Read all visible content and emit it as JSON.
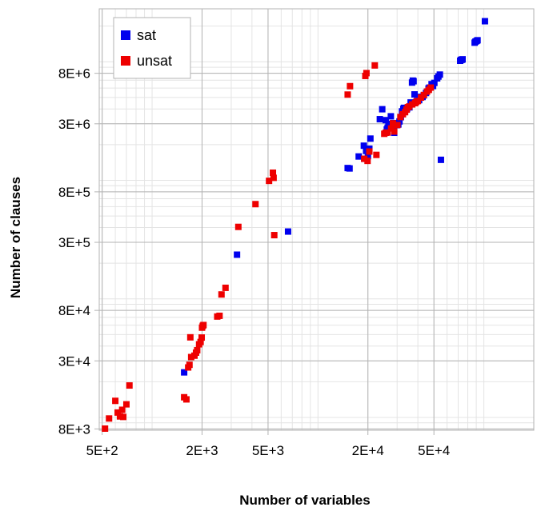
{
  "chart_data": {
    "type": "scatter",
    "xlabel": "Number of variables",
    "ylabel": "Number of clauses",
    "x_scale": "log",
    "y_scale": "log",
    "xlim": [
      480,
      200000
    ],
    "ylim": [
      7800,
      28000000
    ],
    "x_ticks": [
      {
        "value": 500,
        "label": "5E+2"
      },
      {
        "value": 2000,
        "label": "2E+3"
      },
      {
        "value": 5000,
        "label": "5E+3"
      },
      {
        "value": 20000,
        "label": "2E+4"
      },
      {
        "value": 50000,
        "label": "5E+4"
      }
    ],
    "y_ticks": [
      {
        "value": 8000,
        "label": "8E+3"
      },
      {
        "value": 30000,
        "label": "3E+4"
      },
      {
        "value": 80000,
        "label": "8E+4"
      },
      {
        "value": 300000,
        "label": "3E+5"
      },
      {
        "value": 800000,
        "label": "8E+5"
      },
      {
        "value": 3000000,
        "label": "3E+6"
      },
      {
        "value": 8000000,
        "label": "8E+6"
      }
    ],
    "grid": true,
    "legend_position": "top-left",
    "series": [
      {
        "name": "sat",
        "color": "#0000ee",
        "points": [
          [
            1560,
            24000
          ],
          [
            3250,
            236000
          ],
          [
            6600,
            370000
          ],
          [
            15100,
            1270000
          ],
          [
            15500,
            1260000
          ],
          [
            17600,
            1590000
          ],
          [
            18900,
            1960000
          ],
          [
            19000,
            1520000
          ],
          [
            19500,
            1770000
          ],
          [
            19800,
            1820000
          ],
          [
            20000,
            1600000
          ],
          [
            20400,
            1850000
          ],
          [
            20700,
            2250000
          ],
          [
            23600,
            3280000
          ],
          [
            24400,
            3980000
          ],
          [
            25600,
            3220000
          ],
          [
            26000,
            2690000
          ],
          [
            26300,
            2780000
          ],
          [
            26600,
            3000000
          ],
          [
            27500,
            3470000
          ],
          [
            28400,
            2920000
          ],
          [
            28500,
            3040000
          ],
          [
            28800,
            2520000
          ],
          [
            29800,
            2920000
          ],
          [
            30500,
            2960000
          ],
          [
            31000,
            3140000
          ],
          [
            31600,
            3410000
          ],
          [
            32100,
            3820000
          ],
          [
            32700,
            4010000
          ],
          [
            33000,
            4090000
          ],
          [
            34400,
            3990000
          ],
          [
            35600,
            4130000
          ],
          [
            36200,
            4540000
          ],
          [
            36900,
            6680000
          ],
          [
            37300,
            6940000
          ],
          [
            37700,
            6860000
          ],
          [
            38200,
            5310000
          ],
          [
            39600,
            4680000
          ],
          [
            40700,
            4750000
          ],
          [
            41100,
            4990000
          ],
          [
            41700,
            5060000
          ],
          [
            42700,
            5050000
          ],
          [
            43400,
            5200000
          ],
          [
            44800,
            5460000
          ],
          [
            46400,
            5960000
          ],
          [
            47000,
            6060000
          ],
          [
            48400,
            6480000
          ],
          [
            49400,
            6250000
          ],
          [
            50300,
            6640000
          ],
          [
            52300,
            7250000
          ],
          [
            53200,
            7510000
          ],
          [
            54300,
            7800000
          ],
          [
            55100,
            1490000
          ],
          [
            72000,
            10200000
          ],
          [
            72700,
            10400000
          ],
          [
            73800,
            10400000
          ],
          [
            74400,
            10500000
          ],
          [
            88000,
            14500000
          ],
          [
            89000,
            14800000
          ],
          [
            90500,
            15000000
          ],
          [
            91600,
            15200000
          ],
          [
            101500,
            22000000
          ]
        ]
      },
      {
        "name": "unsat",
        "color": "#ee0000",
        "points": [
          [
            520,
            8050
          ],
          [
            550,
            9800
          ],
          [
            600,
            13800
          ],
          [
            620,
            11000
          ],
          [
            640,
            10200
          ],
          [
            660,
            11600
          ],
          [
            670,
            10100
          ],
          [
            700,
            12900
          ],
          [
            730,
            18600
          ],
          [
            1560,
            14800
          ],
          [
            1610,
            14200
          ],
          [
            1650,
            26400
          ],
          [
            1680,
            27800
          ],
          [
            1700,
            47400
          ],
          [
            1720,
            32300
          ],
          [
            1800,
            33200
          ],
          [
            1840,
            35200
          ],
          [
            1870,
            36900
          ],
          [
            1920,
            41400
          ],
          [
            1960,
            43300
          ],
          [
            1990,
            47200
          ],
          [
            2000,
            57200
          ],
          [
            2020,
            59200
          ],
          [
            2040,
            60200
          ],
          [
            2470,
            71000
          ],
          [
            2550,
            72000
          ],
          [
            2620,
            109000
          ],
          [
            2770,
            124000
          ],
          [
            3310,
            405000
          ],
          [
            4200,
            630000
          ],
          [
            5070,
            990000
          ],
          [
            5350,
            1160000
          ],
          [
            5400,
            1050000
          ],
          [
            5450,
            345000
          ],
          [
            15100,
            5290000
          ],
          [
            15600,
            6230000
          ],
          [
            19000,
            1520000
          ],
          [
            19300,
            7600000
          ],
          [
            19600,
            8030000
          ],
          [
            19900,
            1460000
          ],
          [
            20400,
            1750000
          ],
          [
            22000,
            9320000
          ],
          [
            22500,
            1640000
          ],
          [
            25100,
            2470000
          ],
          [
            25600,
            2520000
          ],
          [
            26200,
            2530000
          ],
          [
            27600,
            2740000
          ],
          [
            28300,
            3030000
          ],
          [
            28800,
            2580000
          ],
          [
            30100,
            2930000
          ],
          [
            31400,
            3420000
          ],
          [
            32500,
            3610000
          ],
          [
            33500,
            3760000
          ],
          [
            34200,
            3950000
          ],
          [
            34800,
            4140000
          ],
          [
            35500,
            4200000
          ],
          [
            37000,
            4370000
          ],
          [
            38500,
            4480000
          ],
          [
            39100,
            4590000
          ],
          [
            40000,
            4670000
          ],
          [
            41800,
            4990000
          ],
          [
            43500,
            5250000
          ],
          [
            45400,
            5610000
          ],
          [
            46600,
            5800000
          ],
          [
            47800,
            6060000
          ]
        ]
      }
    ]
  }
}
